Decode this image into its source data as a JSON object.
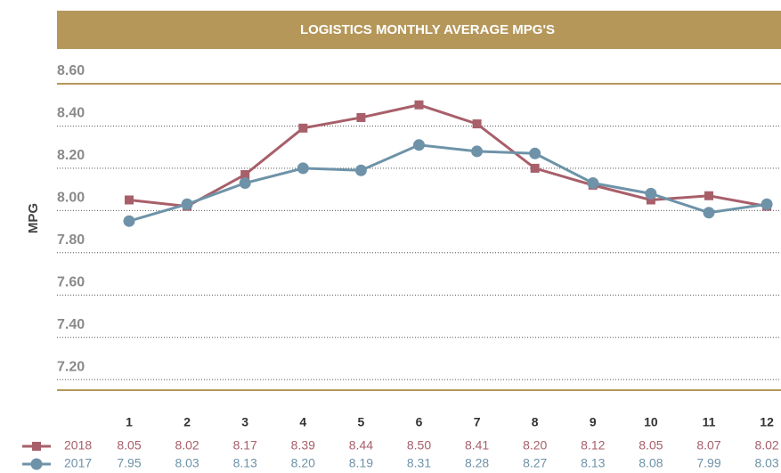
{
  "chart_data": {
    "type": "line",
    "title": "LOGISTICS MONTHLY AVERAGE MPG'S",
    "y_label": "MPG",
    "categories": [
      "1",
      "2",
      "3",
      "4",
      "5",
      "6",
      "7",
      "8",
      "9",
      "10",
      "11",
      "12"
    ],
    "series": [
      {
        "name": "2018",
        "color": "#a85f6a",
        "marker": "square",
        "values": [
          8.05,
          8.02,
          8.17,
          8.39,
          8.44,
          8.5,
          8.41,
          8.2,
          8.12,
          8.05,
          8.07,
          8.02
        ],
        "value_labels": [
          "8.05",
          "8.02",
          "8.17",
          "8.39",
          "8.44",
          "8.50",
          "8.41",
          "8.20",
          "8.12",
          "8.05",
          "8.07",
          "8.02"
        ]
      },
      {
        "name": "2017",
        "color": "#6e93a8",
        "marker": "circle",
        "values": [
          7.95,
          8.03,
          8.13,
          8.2,
          8.19,
          8.31,
          8.28,
          8.27,
          8.13,
          8.08,
          7.99,
          8.03
        ],
        "value_labels": [
          "7.95",
          "8.03",
          "8.13",
          "8.20",
          "8.19",
          "8.31",
          "8.28",
          "8.27",
          "8.13",
          "8.08",
          "7.99",
          "8.03"
        ]
      }
    ],
    "ylim": [
      7.15,
      8.6
    ],
    "yticks": [
      {
        "value": 8.6,
        "label": "8.60"
      },
      {
        "value": 8.4,
        "label": "8.40"
      },
      {
        "value": 8.2,
        "label": "8.20"
      },
      {
        "value": 8.0,
        "label": "8.00"
      },
      {
        "value": 7.8,
        "label": "7.80"
      },
      {
        "value": 7.6,
        "label": "7.60"
      },
      {
        "value": 7.4,
        "label": "7.40"
      },
      {
        "value": 7.2,
        "label": "7.20"
      }
    ],
    "grid": true
  }
}
